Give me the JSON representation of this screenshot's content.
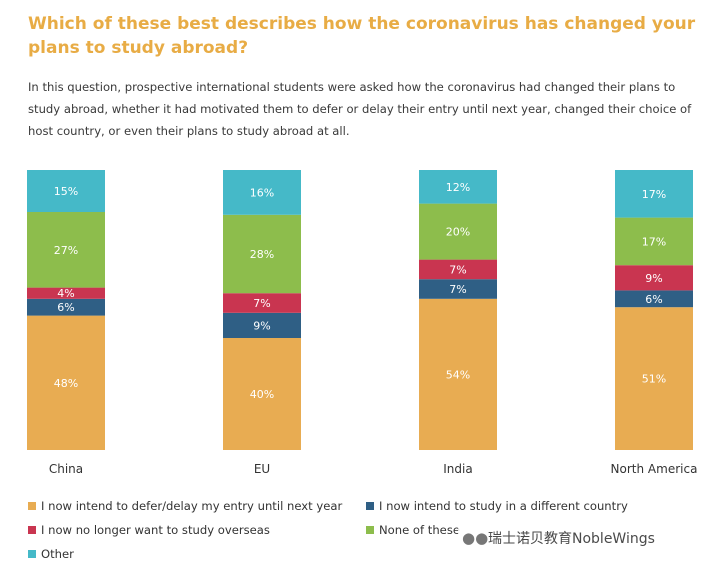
{
  "title": "Which of these best describes how the coronavirus has changed your plans to study abroad?",
  "description": "In this question, prospective international students were asked how the coronavirus had changed their plans to study abroad, whether it had motivated them to defer or delay their entry until next year, changed their choice of host country, or even their plans to study abroad at all.",
  "watermark": "瑞士诺贝教育NobleWings",
  "chart_data": {
    "type": "bar",
    "stacked": true,
    "ylim": [
      0,
      100
    ],
    "categories": [
      "China",
      "EU",
      "India",
      "North America"
    ],
    "series": [
      {
        "name": "I now intend to defer/delay my entry until next year",
        "color": "#e8ac52",
        "values": [
          48,
          40,
          54,
          51
        ],
        "labels": [
          "48%",
          "40%",
          "54%",
          "51%"
        ]
      },
      {
        "name": "I now intend to study in a different country",
        "color": "#2f5f85",
        "values": [
          6,
          9,
          7,
          6
        ],
        "labels": [
          "6%",
          "9%",
          "7%",
          "6%"
        ]
      },
      {
        "name": "I now no longer want to study overseas",
        "color": "#c93550",
        "values": [
          4,
          7,
          7,
          9
        ],
        "labels": [
          "4%",
          "7%",
          "7%",
          "9%"
        ]
      },
      {
        "name": "None of these",
        "color": "#8dbd4c",
        "values": [
          27,
          28,
          20,
          17
        ],
        "labels": [
          "27%",
          "28%",
          "20%",
          "17%"
        ]
      },
      {
        "name": "Other",
        "color": "#45b9c8",
        "values": [
          15,
          16,
          12,
          17
        ],
        "labels": [
          "15%",
          "16%",
          "12%",
          "17%"
        ]
      }
    ]
  }
}
